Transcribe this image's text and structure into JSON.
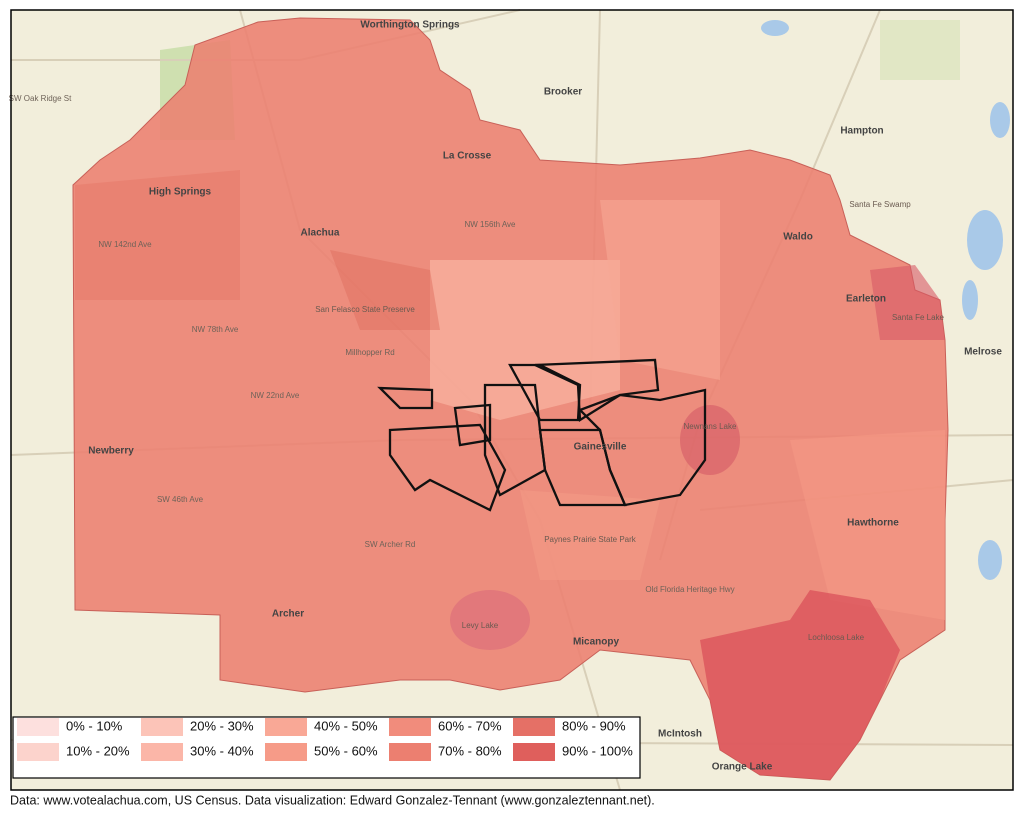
{
  "towns": [
    "Worthington Springs",
    "Brooker",
    "Hampton",
    "La Crosse",
    "High Springs",
    "Alachua",
    "Waldo",
    "Earleton",
    "Melrose",
    "Newberry",
    "Gainesville",
    "Hawthorne",
    "Archer",
    "Micanopy",
    "McIntosh",
    "Orange Lake"
  ],
  "features": [
    "San Felasco State Preserve",
    "Santa Fe Swamp",
    "Santa Fe Lake",
    "Newnans Lake",
    "Paynes Prairie State Park",
    "Levy Lake",
    "Lochloosa Lake"
  ],
  "roads": [
    "NW 156th Ave",
    "NW 142nd Ave",
    "NW 78th Ave",
    "NW 22nd Ave",
    "Millhopper Rd",
    "SW 46th Ave",
    "SW Archer Rd",
    "Old Florida Heritage Hwy",
    "SW Oak Ridge St"
  ],
  "legend": {
    "items": [
      {
        "label": "0% - 10%",
        "color": "#fde0de"
      },
      {
        "label": "10% - 20%",
        "color": "#fcd3cc"
      },
      {
        "label": "20% - 30%",
        "color": "#fcc4b8"
      },
      {
        "label": "30% - 40%",
        "color": "#fbb6a8"
      },
      {
        "label": "40% - 50%",
        "color": "#f9a896"
      },
      {
        "label": "50% - 60%",
        "color": "#f69b88"
      },
      {
        "label": "60% - 70%",
        "color": "#f18c7c"
      },
      {
        "label": "70% - 80%",
        "color": "#ec7f70"
      },
      {
        "label": "80% - 90%",
        "color": "#e57066"
      },
      {
        "label": "90% - 100%",
        "color": "#df5f5c"
      }
    ]
  },
  "footer": "Data: www.votealachua.com, US Census.  Data visualization: Edward Gonzalez-Tennant (www.gonzaleztennant.net)."
}
